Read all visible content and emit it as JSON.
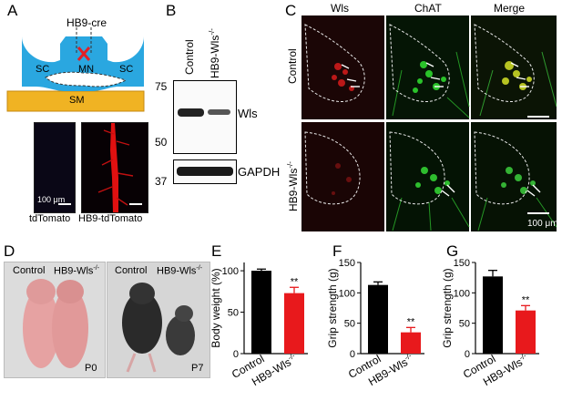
{
  "panels": {
    "A": {
      "letter": "A",
      "label_hb9cre": "HB9-cre",
      "label_sc_left": "SC",
      "label_mn": "MN",
      "label_sc_right": "SC",
      "label_sm": "SM",
      "scale_text": "100 μm",
      "caption_left": "tdTomato",
      "caption_right": "HB9-tdTomato"
    },
    "B": {
      "letter": "B",
      "lane_control": "Control",
      "lane_ko": "HB9-Wls",
      "lane_ko_sup": "-/-",
      "mw_markers": [
        "75",
        "50",
        "37"
      ],
      "band_wls": "Wls",
      "band_gapdh": "GAPDH"
    },
    "C": {
      "letter": "C",
      "col_wls": "Wls",
      "col_chat": "ChAT",
      "col_merge": "Merge",
      "row_control": "Control",
      "row_ko": "HB9-Wls",
      "row_ko_sup": "-/-",
      "scale_text": "100 μm"
    },
    "D": {
      "letter": "D",
      "p0_control": "Control",
      "p0_ko": "HB9-Wls",
      "p0_ko_sup": "-/-",
      "p0_age": "P0",
      "p7_control": "Control",
      "p7_ko": "HB9-Wls",
      "p7_ko_sup": "-/-",
      "p7_age": "P7"
    }
  },
  "chart_data": [
    {
      "panel": "E",
      "type": "bar",
      "categories": [
        "Control",
        "HB9-Wls-/-"
      ],
      "category_labels": [
        {
          "main": "Control",
          "sup": ""
        },
        {
          "main": "HB9-Wls",
          "sup": "-/-"
        }
      ],
      "values": [
        100,
        73
      ],
      "errors": [
        2,
        7
      ],
      "colors": [
        "#000000",
        "#e8191c"
      ],
      "significance": [
        "",
        "**"
      ],
      "ylabel": "Body weight (%)",
      "yticks": [
        0,
        50,
        100
      ],
      "ylim": [
        0,
        110
      ]
    },
    {
      "panel": "F",
      "type": "bar",
      "categories": [
        "Control",
        "HB9-Wls-/-"
      ],
      "category_labels": [
        {
          "main": "Control",
          "sup": ""
        },
        {
          "main": "HB9-Wls",
          "sup": "-/-"
        }
      ],
      "values": [
        113,
        35
      ],
      "errors": [
        5,
        8
      ],
      "colors": [
        "#000000",
        "#e8191c"
      ],
      "significance": [
        "",
        "**"
      ],
      "ylabel": "Grip strength (g)",
      "yticks": [
        0,
        50,
        100,
        150
      ],
      "ylim": [
        0,
        150
      ]
    },
    {
      "panel": "G",
      "type": "bar",
      "categories": [
        "Control",
        "HB9-Wls-/-"
      ],
      "category_labels": [
        {
          "main": "Control",
          "sup": ""
        },
        {
          "main": "HB9-Wls",
          "sup": "-/-"
        }
      ],
      "values": [
        127,
        71
      ],
      "errors": [
        10,
        8
      ],
      "colors": [
        "#000000",
        "#e8191c"
      ],
      "significance": [
        "",
        "**"
      ],
      "ylabel": "Grip strength (g)",
      "yticks": [
        0,
        50,
        100,
        150
      ],
      "ylim": [
        0,
        150
      ]
    }
  ]
}
